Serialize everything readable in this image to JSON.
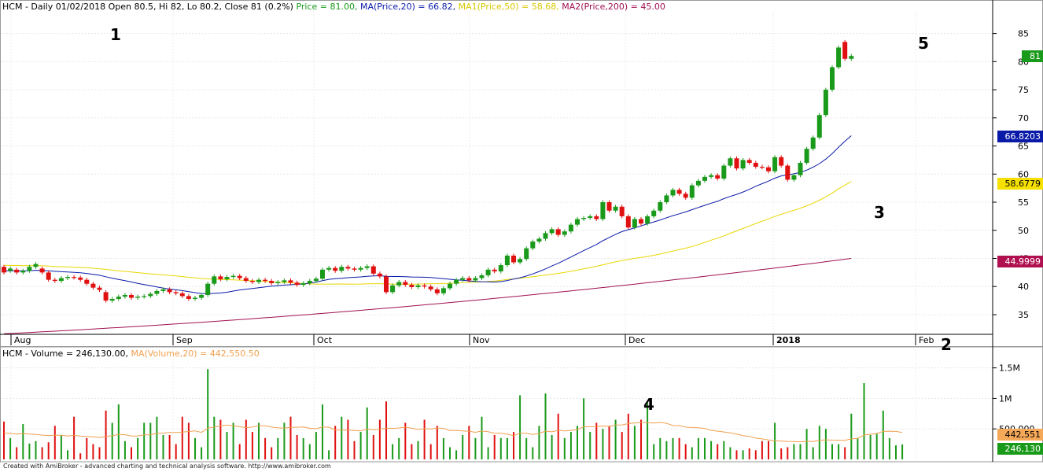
{
  "price_legend": {
    "prefix": "HCM - Daily 01/02/2018 Open 80.5, Hi 82, Lo 80.2, Close 81 (0.2%)",
    "price": "Price = 81.00,",
    "ma20": "MA(Price,20) = 66.82,",
    "ma50": "MA1(Price,50) = 58.68,",
    "ma200": "MA2(Price,200) = 45.00"
  },
  "volume_legend": {
    "prefix": "HCM - Volume = 246,130.00,",
    "ma": "MA(Volume,20) = 442,550.50"
  },
  "badges": {
    "close": "81",
    "ma20": "66.8203",
    "ma50": "58.6779",
    "ma200": "44.9999",
    "vol_ma": "442,551",
    "vol": "246,130"
  },
  "annotations": [
    "1",
    "2",
    "3",
    "4",
    "5"
  ],
  "footer": "Created with AmiBroker - advanced charting and technical analysis software. http://www.amibroker.com",
  "colors": {
    "up": "#1a9a1a",
    "down": "#e01010",
    "ma20": "#0a1aa8",
    "ma50": "#e8d800",
    "ma200": "#a01050",
    "vol_ma": "#f0a050",
    "legend_green": "#1a9a1a",
    "legend_blue": "#0a1aa8",
    "legend_gold": "#d8c800",
    "legend_maroon": "#a01050",
    "legend_orange": "#f0a050"
  },
  "chart_data": [
    {
      "type": "candlestick",
      "title": "HCM - Daily",
      "date_labels": [
        "Aug",
        "Sep",
        "Oct",
        "Nov",
        "Dec",
        "2018",
        "Feb"
      ],
      "y_ticks": [
        "35",
        "40",
        "45",
        "50",
        "55",
        "60",
        "65",
        "70",
        "75",
        "80",
        "85"
      ],
      "ylim": [
        31.5,
        89
      ],
      "grid": true,
      "candles": [
        {
          "o": 43.5,
          "c": 42.5
        },
        {
          "o": 42.8,
          "c": 43.2
        },
        {
          "o": 43,
          "c": 42.5
        },
        {
          "o": 42.5,
          "c": 42.8
        },
        {
          "o": 42.8,
          "c": 43.5
        },
        {
          "o": 43.5,
          "c": 44
        },
        {
          "o": 43.2,
          "c": 42.5
        },
        {
          "o": 42.5,
          "c": 41.2
        },
        {
          "o": 41.2,
          "c": 41
        },
        {
          "o": 41,
          "c": 41.5
        },
        {
          "o": 41.5,
          "c": 41.7
        },
        {
          "o": 41.7,
          "c": 41.6
        },
        {
          "o": 41.6,
          "c": 41.2
        },
        {
          "o": 41.2,
          "c": 40.5
        },
        {
          "o": 40.5,
          "c": 39.8
        },
        {
          "o": 39.8,
          "c": 39.4
        },
        {
          "o": 39,
          "c": 37.5
        },
        {
          "o": 37.5,
          "c": 37.8
        },
        {
          "o": 37.8,
          "c": 38.2
        },
        {
          "o": 38.2,
          "c": 38.5
        },
        {
          "o": 38.5,
          "c": 38
        },
        {
          "o": 38,
          "c": 38.2
        },
        {
          "o": 38.2,
          "c": 38.3
        },
        {
          "o": 38.3,
          "c": 38.7
        },
        {
          "o": 38.7,
          "c": 39.2
        },
        {
          "o": 39.2,
          "c": 39.5
        },
        {
          "o": 39.5,
          "c": 39
        },
        {
          "o": 39,
          "c": 38.8
        },
        {
          "o": 38.8,
          "c": 38.3
        },
        {
          "o": 38.3,
          "c": 37.8
        },
        {
          "o": 37.8,
          "c": 38
        },
        {
          "o": 38,
          "c": 38.5
        },
        {
          "o": 38.5,
          "c": 40.5
        },
        {
          "o": 40.5,
          "c": 41.8
        },
        {
          "o": 41.8,
          "c": 41.3
        },
        {
          "o": 41.3,
          "c": 41.7
        },
        {
          "o": 41.7,
          "c": 41.9
        },
        {
          "o": 41.9,
          "c": 41.5
        },
        {
          "o": 41.5,
          "c": 41
        },
        {
          "o": 41,
          "c": 40.8
        },
        {
          "o": 40.8,
          "c": 41.2
        },
        {
          "o": 41.2,
          "c": 41
        },
        {
          "o": 41,
          "c": 40.6
        },
        {
          "o": 40.6,
          "c": 40.8
        },
        {
          "o": 40.8,
          "c": 41.1
        },
        {
          "o": 41.1,
          "c": 40.7
        },
        {
          "o": 40.7,
          "c": 40.3
        },
        {
          "o": 40.3,
          "c": 40.6
        },
        {
          "o": 40.6,
          "c": 41
        },
        {
          "o": 41,
          "c": 41.4
        },
        {
          "o": 41.4,
          "c": 43
        },
        {
          "o": 43,
          "c": 43.3
        },
        {
          "o": 43.3,
          "c": 42.8
        },
        {
          "o": 42.8,
          "c": 43.5
        },
        {
          "o": 43.5,
          "c": 43.2
        },
        {
          "o": 43.2,
          "c": 43
        },
        {
          "o": 43,
          "c": 43.3
        },
        {
          "o": 43.3,
          "c": 43.6
        },
        {
          "o": 43.6,
          "c": 42.3
        },
        {
          "o": 42.3,
          "c": 41.8
        },
        {
          "o": 41.8,
          "c": 39
        },
        {
          "o": 39,
          "c": 40.2
        },
        {
          "o": 40.2,
          "c": 40.8
        },
        {
          "o": 40.8,
          "c": 40.3
        },
        {
          "o": 40.3,
          "c": 39.9
        },
        {
          "o": 39.9,
          "c": 40.2
        },
        {
          "o": 40.2,
          "c": 40
        },
        {
          "o": 40,
          "c": 39.5
        },
        {
          "o": 39.5,
          "c": 38.8
        },
        {
          "o": 38.8,
          "c": 39.7
        },
        {
          "o": 39.7,
          "c": 40.5
        },
        {
          "o": 40.5,
          "c": 41.2
        },
        {
          "o": 41.2,
          "c": 41.5
        },
        {
          "o": 41.5,
          "c": 41.1
        },
        {
          "o": 41.1,
          "c": 41.5
        },
        {
          "o": 41.5,
          "c": 42
        },
        {
          "o": 42,
          "c": 43
        },
        {
          "o": 43,
          "c": 42.7
        },
        {
          "o": 42.7,
          "c": 43.8
        },
        {
          "o": 43.8,
          "c": 45.5
        },
        {
          "o": 45.5,
          "c": 44.3
        },
        {
          "o": 44.3,
          "c": 44.9
        },
        {
          "o": 44.9,
          "c": 46.8
        },
        {
          "o": 46.8,
          "c": 48
        },
        {
          "o": 48,
          "c": 48.5
        },
        {
          "o": 48.5,
          "c": 49.5
        },
        {
          "o": 49.5,
          "c": 50.2
        },
        {
          "o": 50.2,
          "c": 49.2
        },
        {
          "o": 49.2,
          "c": 49.8
        },
        {
          "o": 49.8,
          "c": 51
        },
        {
          "o": 51,
          "c": 52
        },
        {
          "o": 52,
          "c": 52.2
        },
        {
          "o": 52.2,
          "c": 52.5
        },
        {
          "o": 52.5,
          "c": 52
        },
        {
          "o": 52,
          "c": 55
        },
        {
          "o": 55,
          "c": 53.5
        },
        {
          "o": 53.5,
          "c": 54.2
        },
        {
          "o": 54.2,
          "c": 52.5
        },
        {
          "o": 52.5,
          "c": 50.5
        },
        {
          "o": 50.5,
          "c": 52
        },
        {
          "o": 52,
          "c": 51.2
        },
        {
          "o": 51.2,
          "c": 52.5
        },
        {
          "o": 52.5,
          "c": 53.5
        },
        {
          "o": 53.5,
          "c": 55
        },
        {
          "o": 55,
          "c": 56.2
        },
        {
          "o": 56.2,
          "c": 57.2
        },
        {
          "o": 57.2,
          "c": 56.5
        },
        {
          "o": 56.5,
          "c": 55.8
        },
        {
          "o": 55.8,
          "c": 58
        },
        {
          "o": 58,
          "c": 58.8
        },
        {
          "o": 58.8,
          "c": 59.5
        },
        {
          "o": 59.5,
          "c": 59.8
        },
        {
          "o": 59.8,
          "c": 59.2
        },
        {
          "o": 59.2,
          "c": 61.5
        },
        {
          "o": 61.5,
          "c": 62.8
        },
        {
          "o": 62.8,
          "c": 61
        },
        {
          "o": 61,
          "c": 62.5
        },
        {
          "o": 62.5,
          "c": 62
        },
        {
          "o": 62,
          "c": 61.3
        },
        {
          "o": 61.3,
          "c": 61.2
        },
        {
          "o": 61.2,
          "c": 60.5
        },
        {
          "o": 60.5,
          "c": 63
        },
        {
          "o": 63,
          "c": 61.5
        },
        {
          "o": 61.5,
          "c": 59
        },
        {
          "o": 59,
          "c": 59.8
        },
        {
          "o": 59.8,
          "c": 62
        },
        {
          "o": 62,
          "c": 64.5
        },
        {
          "o": 64.5,
          "c": 66.5
        },
        {
          "o": 66.5,
          "c": 70.5
        },
        {
          "o": 70.5,
          "c": 75
        },
        {
          "o": 75,
          "c": 79
        },
        {
          "o": 79,
          "c": 82.5
        },
        {
          "o": 83.5,
          "c": 80.5
        },
        {
          "o": 80.5,
          "c": 81
        }
      ],
      "ma20_last": 66.82,
      "ma50_last": 58.68,
      "ma200_last": 45.0
    },
    {
      "type": "bar",
      "title": "HCM - Volume",
      "y_ticks": [
        "500,000",
        "1M",
        "1.5M"
      ],
      "ylim": [
        0,
        1650000
      ],
      "volumes": [
        620000,
        350000,
        200000,
        580000,
        260000,
        300000,
        200000,
        280000,
        550000,
        400000,
        150000,
        700000,
        100000,
        350000,
        250000,
        200000,
        800000,
        600000,
        900000,
        300000,
        200000,
        350000,
        600000,
        600000,
        700000,
        400000,
        400000,
        250000,
        700000,
        600000,
        350000,
        200000,
        1480000,
        700000,
        650000,
        450000,
        600000,
        250000,
        650000,
        450000,
        600000,
        350000,
        200000,
        350000,
        600000,
        700000,
        400000,
        350000,
        250000,
        450000,
        900000,
        150000,
        550000,
        700000,
        650000,
        300000,
        450000,
        850000,
        400000,
        650000,
        950000,
        250000,
        350000,
        600000,
        250000,
        300000,
        650000,
        250000,
        550000,
        350000,
        200000,
        150000,
        400000,
        550000,
        350000,
        700000,
        200000,
        400000,
        350000,
        350000,
        450000,
        1050000,
        350000,
        200000,
        550000,
        1080000,
        400000,
        750000,
        350000,
        450000,
        550000,
        1000000,
        450000,
        600000,
        500000,
        550000,
        650000,
        450000,
        750000,
        550000,
        650000,
        920000,
        250000,
        350000,
        300000,
        350000,
        350000,
        250000,
        200000,
        350000,
        350000,
        300000,
        250000,
        300000,
        200000,
        150000,
        150000,
        180000,
        150000,
        300000,
        300000,
        600000,
        180000,
        200000,
        250000,
        250000,
        500000,
        200000,
        550000,
        500000,
        250000,
        250000,
        200000,
        750000,
        350000,
        1250000,
        400000,
        420000,
        800000,
        350000,
        230000,
        246130
      ],
      "vol_ma_last": 442550.5
    }
  ]
}
